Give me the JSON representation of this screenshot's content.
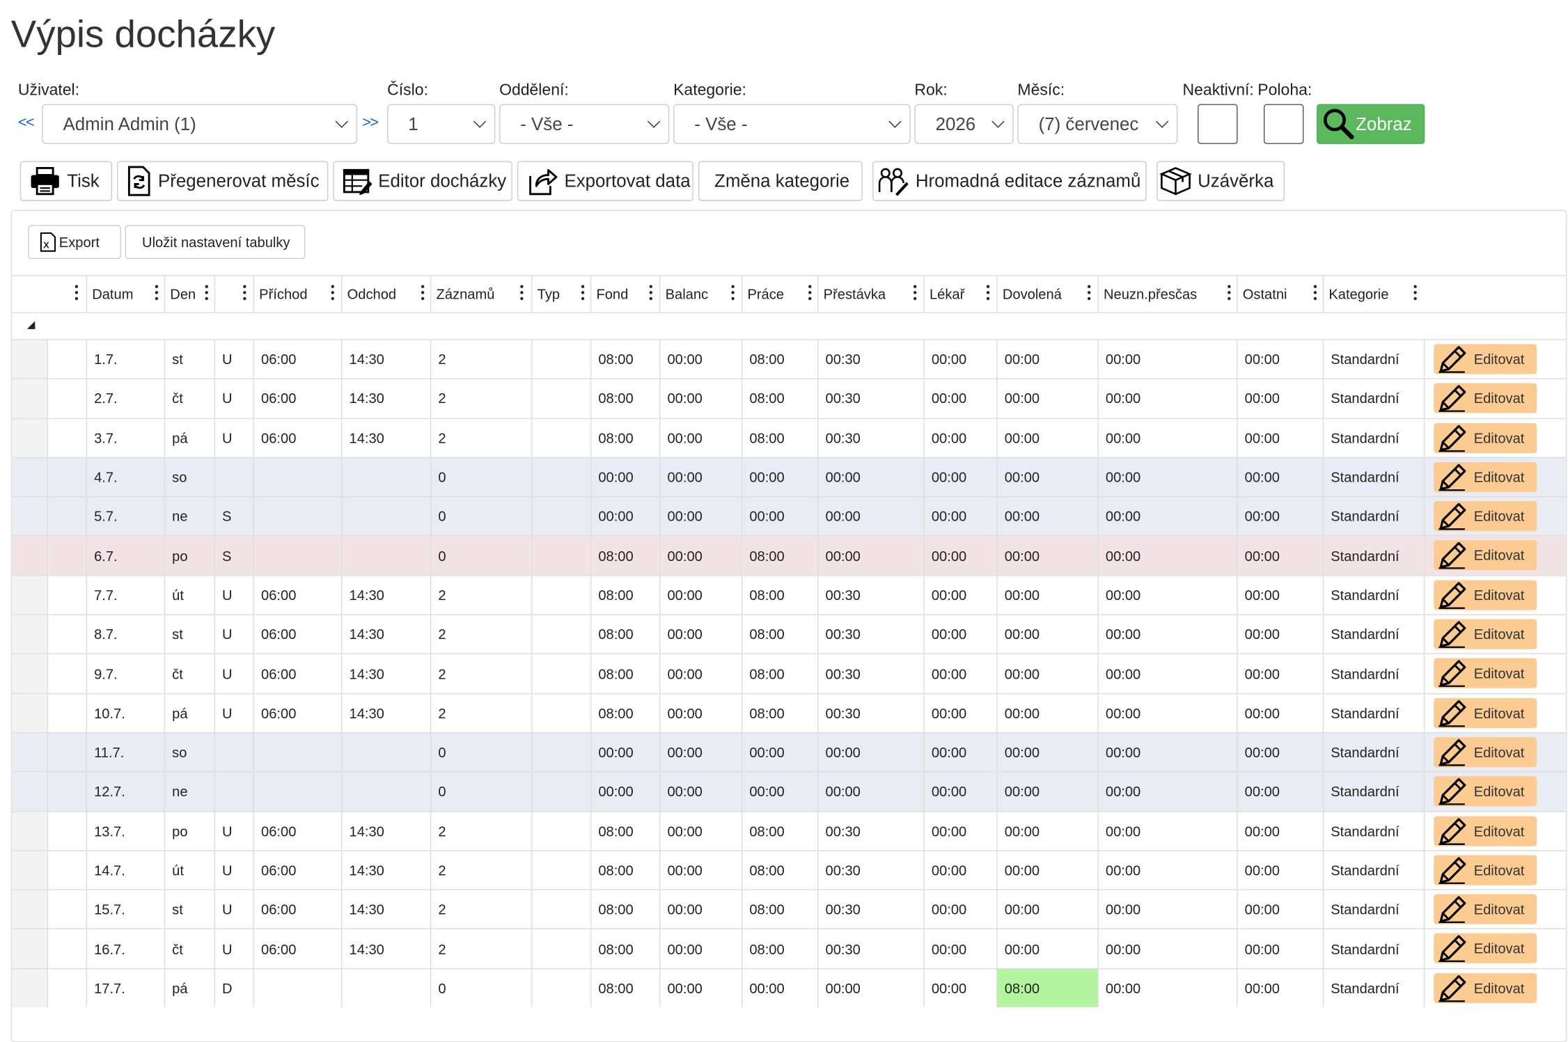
{
  "title": "Výpis docházky",
  "filters": {
    "user_label": "Uživatel:",
    "user_value": "Admin Admin (1)",
    "prev": "<<",
    "next": ">>",
    "number_label": "Číslo:",
    "number_value": "1",
    "dept_label": "Oddělení:",
    "dept_value": "- Vše -",
    "category_label": "Kategorie:",
    "category_value": "- Vše -",
    "year_label": "Rok:",
    "year_value": "2026",
    "month_label": "Měsíc:",
    "month_value": "(7) červenec",
    "inactive_label": "Neaktivní:",
    "position_label": "Poloha:",
    "show_label": "Zobraz"
  },
  "toolbar": {
    "print": "Tisk",
    "regen": "Přegenerovat měsíc",
    "editor": "Editor docházky",
    "export_data": "Exportovat data",
    "change_cat": "Změna kategorie",
    "bulk_edit": "Hromadná editace záznamů",
    "closing": "Uzávěrka"
  },
  "table_tools": {
    "export": "Export",
    "save_settings": "Uložit nastavení tabulky"
  },
  "columns": [
    "Datum",
    "Den",
    "",
    "Příchod",
    "Odchod",
    "Záznamů",
    "Typ",
    "Fond",
    "Balanc",
    "Práce",
    "Přestávka",
    "Lékař",
    "Dovolená",
    "Neuzn.přesčas",
    "Ostatni",
    "Kategorie"
  ],
  "edit_label": "Editovat",
  "colors": {
    "weekend": "#e9edf3",
    "holiday": "#f2e4e6",
    "vacation": "#b3f59e",
    "edit": "#fbcb91",
    "show": "#5cb85c"
  },
  "rows": [
    {
      "date": "1.7.",
      "day": "st",
      "t": "U",
      "in": "06:00",
      "out": "14:30",
      "n": "2",
      "typ": "",
      "fond": "08:00",
      "bal": "00:00",
      "prace": "08:00",
      "prest": "00:30",
      "lekar": "00:00",
      "dov": "00:00",
      "neuzn": "00:00",
      "ost": "00:00",
      "kat": "Standardní",
      "kind": "work"
    },
    {
      "date": "2.7.",
      "day": "čt",
      "t": "U",
      "in": "06:00",
      "out": "14:30",
      "n": "2",
      "typ": "",
      "fond": "08:00",
      "bal": "00:00",
      "prace": "08:00",
      "prest": "00:30",
      "lekar": "00:00",
      "dov": "00:00",
      "neuzn": "00:00",
      "ost": "00:00",
      "kat": "Standardní",
      "kind": "work"
    },
    {
      "date": "3.7.",
      "day": "pá",
      "t": "U",
      "in": "06:00",
      "out": "14:30",
      "n": "2",
      "typ": "",
      "fond": "08:00",
      "bal": "00:00",
      "prace": "08:00",
      "prest": "00:30",
      "lekar": "00:00",
      "dov": "00:00",
      "neuzn": "00:00",
      "ost": "00:00",
      "kat": "Standardní",
      "kind": "work"
    },
    {
      "date": "4.7.",
      "day": "so",
      "t": "",
      "in": "",
      "out": "",
      "n": "0",
      "typ": "",
      "fond": "00:00",
      "bal": "00:00",
      "prace": "00:00",
      "prest": "00:00",
      "lekar": "00:00",
      "dov": "00:00",
      "neuzn": "00:00",
      "ost": "00:00",
      "kat": "Standardní",
      "kind": "weekend"
    },
    {
      "date": "5.7.",
      "day": "ne",
      "t": "S",
      "in": "",
      "out": "",
      "n": "0",
      "typ": "",
      "fond": "00:00",
      "bal": "00:00",
      "prace": "00:00",
      "prest": "00:00",
      "lekar": "00:00",
      "dov": "00:00",
      "neuzn": "00:00",
      "ost": "00:00",
      "kat": "Standardní",
      "kind": "weekend"
    },
    {
      "date": "6.7.",
      "day": "po",
      "t": "S",
      "in": "",
      "out": "",
      "n": "0",
      "typ": "",
      "fond": "08:00",
      "bal": "00:00",
      "prace": "08:00",
      "prest": "00:00",
      "lekar": "00:00",
      "dov": "00:00",
      "neuzn": "00:00",
      "ost": "00:00",
      "kat": "Standardní",
      "kind": "holiday"
    },
    {
      "date": "7.7.",
      "day": "út",
      "t": "U",
      "in": "06:00",
      "out": "14:30",
      "n": "2",
      "typ": "",
      "fond": "08:00",
      "bal": "00:00",
      "prace": "08:00",
      "prest": "00:30",
      "lekar": "00:00",
      "dov": "00:00",
      "neuzn": "00:00",
      "ost": "00:00",
      "kat": "Standardní",
      "kind": "work"
    },
    {
      "date": "8.7.",
      "day": "st",
      "t": "U",
      "in": "06:00",
      "out": "14:30",
      "n": "2",
      "typ": "",
      "fond": "08:00",
      "bal": "00:00",
      "prace": "08:00",
      "prest": "00:30",
      "lekar": "00:00",
      "dov": "00:00",
      "neuzn": "00:00",
      "ost": "00:00",
      "kat": "Standardní",
      "kind": "work"
    },
    {
      "date": "9.7.",
      "day": "čt",
      "t": "U",
      "in": "06:00",
      "out": "14:30",
      "n": "2",
      "typ": "",
      "fond": "08:00",
      "bal": "00:00",
      "prace": "08:00",
      "prest": "00:30",
      "lekar": "00:00",
      "dov": "00:00",
      "neuzn": "00:00",
      "ost": "00:00",
      "kat": "Standardní",
      "kind": "work"
    },
    {
      "date": "10.7.",
      "day": "pá",
      "t": "U",
      "in": "06:00",
      "out": "14:30",
      "n": "2",
      "typ": "",
      "fond": "08:00",
      "bal": "00:00",
      "prace": "08:00",
      "prest": "00:30",
      "lekar": "00:00",
      "dov": "00:00",
      "neuzn": "00:00",
      "ost": "00:00",
      "kat": "Standardní",
      "kind": "work"
    },
    {
      "date": "11.7.",
      "day": "so",
      "t": "",
      "in": "",
      "out": "",
      "n": "0",
      "typ": "",
      "fond": "00:00",
      "bal": "00:00",
      "prace": "00:00",
      "prest": "00:00",
      "lekar": "00:00",
      "dov": "00:00",
      "neuzn": "00:00",
      "ost": "00:00",
      "kat": "Standardní",
      "kind": "weekend"
    },
    {
      "date": "12.7.",
      "day": "ne",
      "t": "",
      "in": "",
      "out": "",
      "n": "0",
      "typ": "",
      "fond": "00:00",
      "bal": "00:00",
      "prace": "00:00",
      "prest": "00:00",
      "lekar": "00:00",
      "dov": "00:00",
      "neuzn": "00:00",
      "ost": "00:00",
      "kat": "Standardní",
      "kind": "weekend"
    },
    {
      "date": "13.7.",
      "day": "po",
      "t": "U",
      "in": "06:00",
      "out": "14:30",
      "n": "2",
      "typ": "",
      "fond": "08:00",
      "bal": "00:00",
      "prace": "08:00",
      "prest": "00:30",
      "lekar": "00:00",
      "dov": "00:00",
      "neuzn": "00:00",
      "ost": "00:00",
      "kat": "Standardní",
      "kind": "work"
    },
    {
      "date": "14.7.",
      "day": "út",
      "t": "U",
      "in": "06:00",
      "out": "14:30",
      "n": "2",
      "typ": "",
      "fond": "08:00",
      "bal": "00:00",
      "prace": "08:00",
      "prest": "00:30",
      "lekar": "00:00",
      "dov": "00:00",
      "neuzn": "00:00",
      "ost": "00:00",
      "kat": "Standardní",
      "kind": "work"
    },
    {
      "date": "15.7.",
      "day": "st",
      "t": "U",
      "in": "06:00",
      "out": "14:30",
      "n": "2",
      "typ": "",
      "fond": "08:00",
      "bal": "00:00",
      "prace": "08:00",
      "prest": "00:30",
      "lekar": "00:00",
      "dov": "00:00",
      "neuzn": "00:00",
      "ost": "00:00",
      "kat": "Standardní",
      "kind": "work"
    },
    {
      "date": "16.7.",
      "day": "čt",
      "t": "U",
      "in": "06:00",
      "out": "14:30",
      "n": "2",
      "typ": "",
      "fond": "08:00",
      "bal": "00:00",
      "prace": "08:00",
      "prest": "00:30",
      "lekar": "00:00",
      "dov": "00:00",
      "neuzn": "00:00",
      "ost": "00:00",
      "kat": "Standardní",
      "kind": "work"
    },
    {
      "date": "17.7.",
      "day": "pá",
      "t": "D",
      "in": "",
      "out": "",
      "n": "0",
      "typ": "",
      "fond": "08:00",
      "bal": "00:00",
      "prace": "00:00",
      "prest": "00:00",
      "lekar": "00:00",
      "dov": "08:00",
      "neuzn": "00:00",
      "ost": "00:00",
      "kat": "Standardní",
      "kind": "vacation"
    }
  ]
}
